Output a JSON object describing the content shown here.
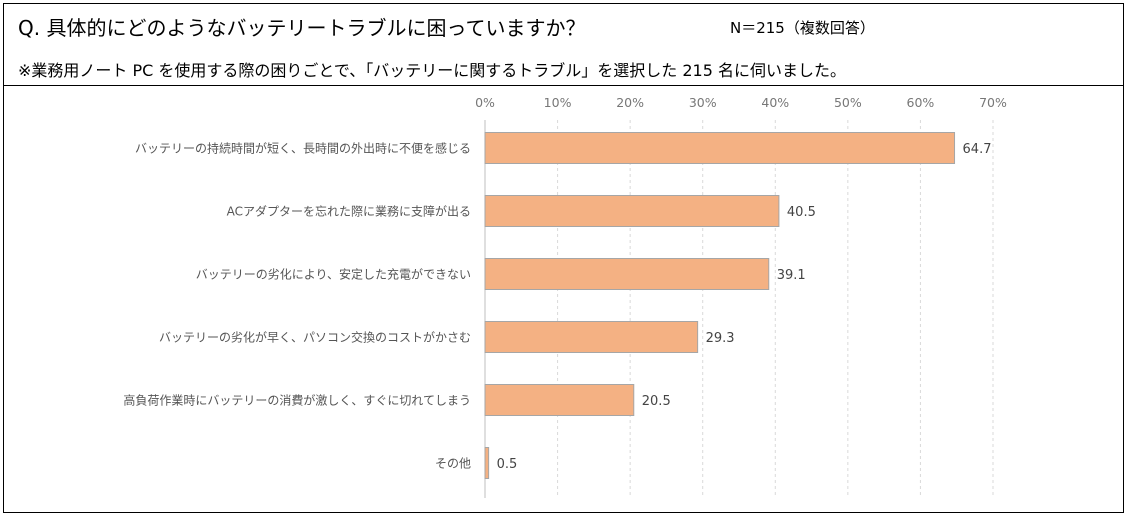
{
  "header": {
    "question": "Q. 具体的にどのようなバッテリートラブルに困っていますか？",
    "sample": "N＝215（複数回答）",
    "note": "※業務用ノート PC を使用する際の困りごとで、「バッテリーに関するトラブル」を選択した 215 名に伺いました。"
  },
  "chart_data": {
    "type": "bar",
    "orientation": "horizontal",
    "categories": [
      "バッテリーの持続時間が短く、長時間の外出時に不便を感じる",
      "ACアダプターを忘れた際に業務に支障が出る",
      "バッテリーの劣化により、安定した充電ができない",
      "バッテリーの劣化が早く、パソコン交換のコストがかさむ",
      "高負荷作業時にバッテリーの消費が激しく、すぐに切れてしまう",
      "その他"
    ],
    "values": [
      64.7,
      40.5,
      39.1,
      29.3,
      20.5,
      0.5
    ],
    "value_labels": [
      "64.7",
      "40.5",
      "39.1",
      "29.3",
      "20.5",
      "0.5"
    ],
    "xlim": [
      0,
      70
    ],
    "ticks": [
      "0%",
      "10%",
      "20%",
      "30%",
      "40%",
      "50%",
      "60%",
      "70%"
    ],
    "grid": true,
    "axis_position": "top",
    "colors": {
      "bar": "#f4b183",
      "bar_border": "#a6a6a6",
      "grid": "#d9d9d9"
    }
  }
}
